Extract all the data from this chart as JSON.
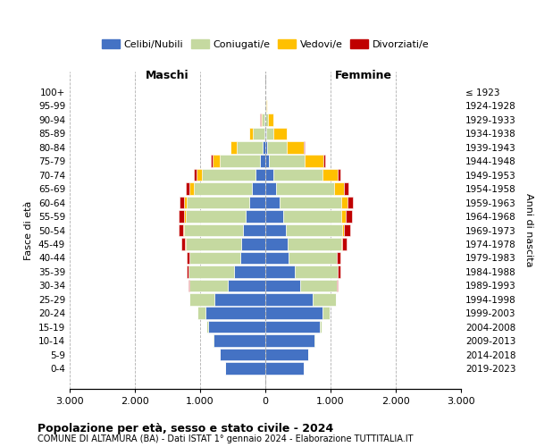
{
  "age_groups": [
    "0-4",
    "5-9",
    "10-14",
    "15-19",
    "20-24",
    "25-29",
    "30-34",
    "35-39",
    "40-44",
    "45-49",
    "50-54",
    "55-59",
    "60-64",
    "65-69",
    "70-74",
    "75-79",
    "80-84",
    "85-89",
    "90-94",
    "95-99",
    "100+"
  ],
  "birth_years": [
    "2019-2023",
    "2014-2018",
    "2009-2013",
    "2004-2008",
    "1999-2003",
    "1994-1998",
    "1989-1993",
    "1984-1988",
    "1979-1983",
    "1974-1978",
    "1969-1973",
    "1964-1968",
    "1959-1963",
    "1954-1958",
    "1949-1953",
    "1944-1948",
    "1939-1943",
    "1934-1938",
    "1929-1933",
    "1924-1928",
    "≤ 1923"
  ],
  "male_celibi": [
    620,
    700,
    800,
    880,
    920,
    780,
    580,
    480,
    380,
    370,
    340,
    300,
    250,
    200,
    150,
    80,
    40,
    20,
    10,
    4,
    2
  ],
  "male_coniugati": [
    1,
    2,
    3,
    20,
    120,
    380,
    580,
    700,
    780,
    850,
    900,
    920,
    960,
    900,
    820,
    620,
    400,
    170,
    50,
    10,
    2
  ],
  "male_vedovi": [
    0,
    0,
    0,
    0,
    0,
    1,
    2,
    3,
    5,
    8,
    15,
    25,
    40,
    60,
    90,
    110,
    90,
    50,
    15,
    3,
    1
  ],
  "male_divorziati": [
    0,
    0,
    0,
    0,
    2,
    5,
    15,
    25,
    40,
    60,
    75,
    85,
    65,
    55,
    35,
    22,
    10,
    4,
    1,
    0,
    0
  ],
  "female_celibi": [
    590,
    660,
    760,
    840,
    880,
    730,
    540,
    450,
    350,
    340,
    310,
    270,
    220,
    170,
    120,
    60,
    25,
    10,
    6,
    3,
    1
  ],
  "female_coniugati": [
    1,
    2,
    3,
    18,
    110,
    350,
    550,
    660,
    740,
    820,
    870,
    900,
    940,
    880,
    760,
    540,
    300,
    120,
    35,
    7,
    1
  ],
  "female_vedovi": [
    0,
    0,
    0,
    0,
    0,
    1,
    2,
    4,
    8,
    15,
    30,
    60,
    100,
    160,
    230,
    290,
    270,
    200,
    80,
    20,
    4
  ],
  "female_divorziati": [
    0,
    0,
    0,
    0,
    3,
    8,
    18,
    30,
    50,
    70,
    90,
    100,
    85,
    65,
    45,
    28,
    12,
    5,
    2,
    0,
    0
  ],
  "colors": {
    "celibi": "#4472c4",
    "coniugati": "#c5d9a0",
    "vedovi": "#ffc000",
    "divorziati": "#c00000"
  },
  "title1": "Popolazione per età, sesso e stato civile - 2024",
  "title2": "COMUNE DI ALTAMURA (BA) - Dati ISTAT 1° gennaio 2024 - Elaborazione TUTTITALIA.IT",
  "xlabel_left": "Maschi",
  "xlabel_right": "Femmine",
  "ylabel": "Fasce di età",
  "ylabel_right": "Anni di nascita",
  "xlim": 3000,
  "xtick_labels": [
    "3.000",
    "2.000",
    "1.000",
    "0",
    "1.000",
    "2.000",
    "3.000"
  ],
  "bg_color": "#ffffff",
  "grid_color": "#b0b0b0"
}
